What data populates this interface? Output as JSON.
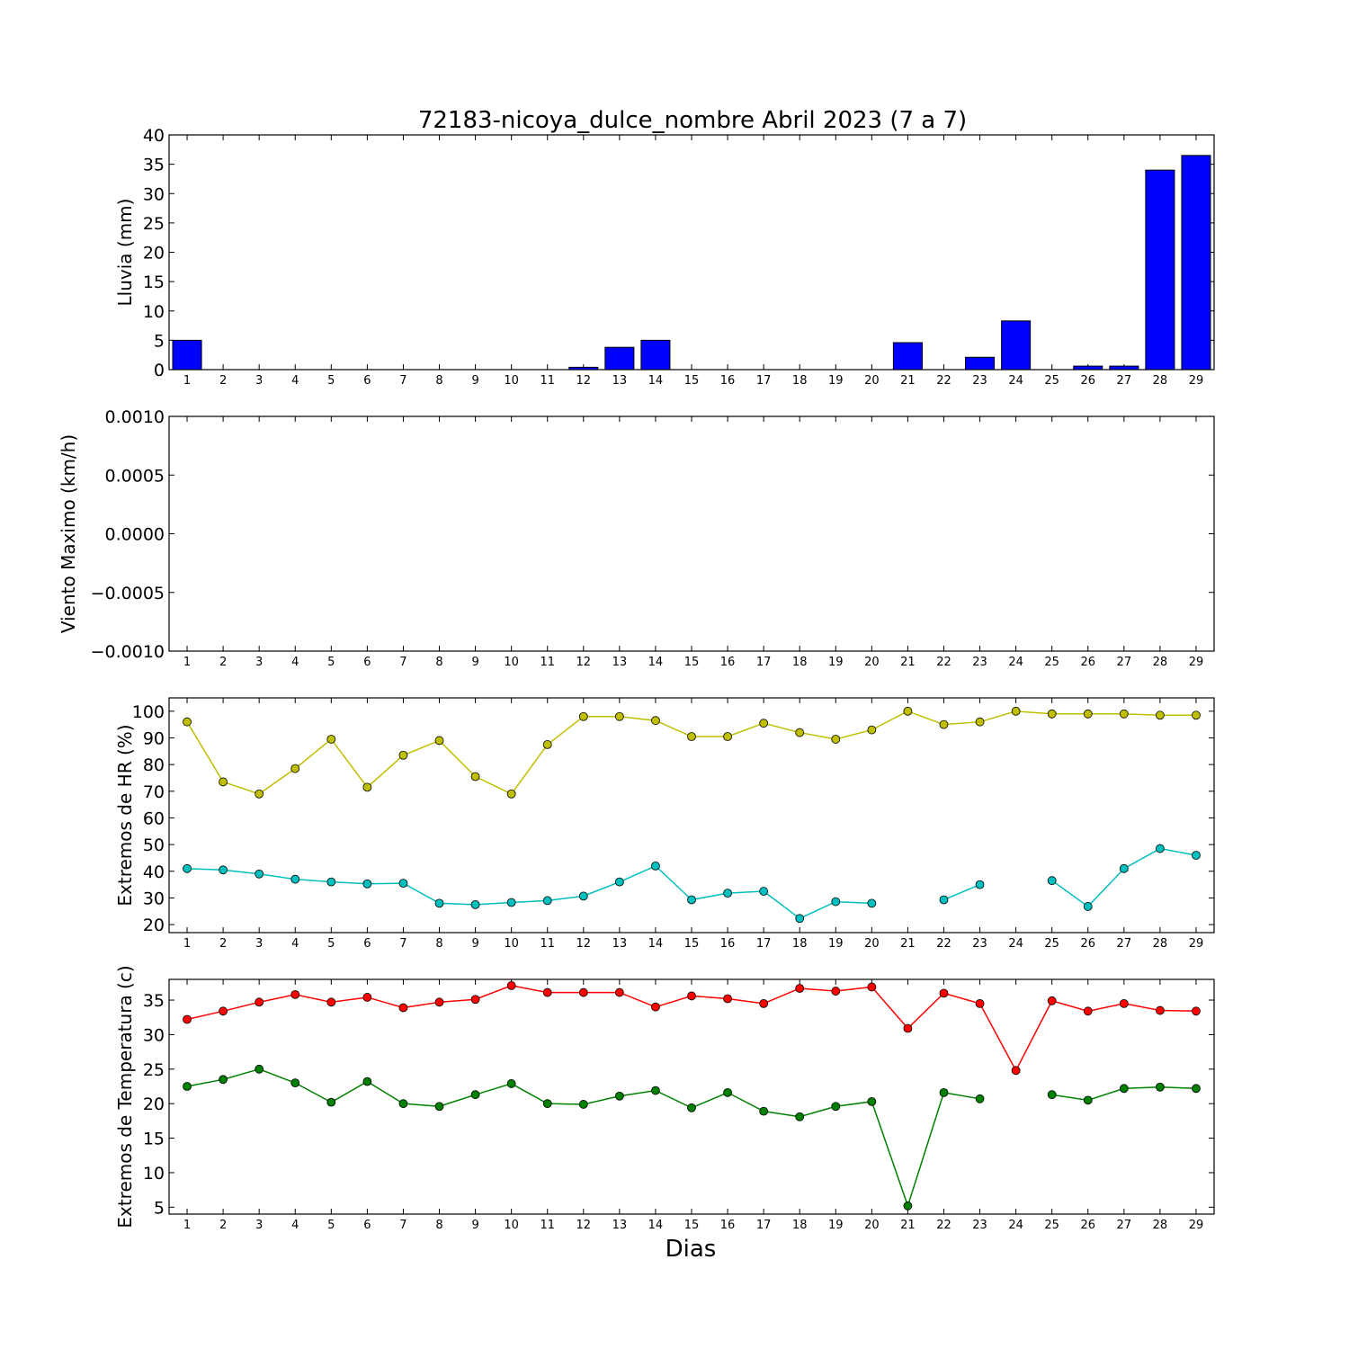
{
  "title": "72183-nicoya_dulce_nombre Abril 2023  (7 a 7)",
  "xlabel": "Dias",
  "colors": {
    "rain": "#0000ff",
    "hr_max": "#bfbf00",
    "hr_min": "#00bfbf",
    "temp_max": "#ff0000",
    "temp_min": "#008000"
  },
  "chart_data": [
    {
      "type": "bar",
      "ylabel": "Lluvia (mm)",
      "ylim": [
        0,
        40
      ],
      "yticks": [
        "0",
        "5",
        "10",
        "15",
        "20",
        "25",
        "30",
        "35",
        "40"
      ],
      "categories": [
        "1",
        "2",
        "3",
        "4",
        "5",
        "6",
        "7",
        "8",
        "9",
        "10",
        "11",
        "12",
        "13",
        "14",
        "15",
        "16",
        "17",
        "18",
        "19",
        "20",
        "21",
        "22",
        "23",
        "24",
        "25",
        "26",
        "27",
        "28",
        "29"
      ],
      "values": [
        5.0,
        0,
        0,
        0,
        0,
        0,
        0,
        0,
        0,
        0,
        0,
        0.4,
        3.8,
        5.0,
        0,
        0,
        0,
        0,
        0,
        0,
        4.6,
        0,
        2.1,
        8.3,
        0,
        0.6,
        0.6,
        34.0,
        36.5
      ]
    },
    {
      "type": "line",
      "ylabel": "Viento Maximo (km/h)",
      "ylim": [
        -0.001,
        0.001
      ],
      "yticks": [
        "−0.0010",
        "−0.0005",
        "0.0000",
        "0.0005",
        "0.0010"
      ],
      "x": [
        "1",
        "2",
        "3",
        "4",
        "5",
        "6",
        "7",
        "8",
        "9",
        "10",
        "11",
        "12",
        "13",
        "14",
        "15",
        "16",
        "17",
        "18",
        "19",
        "20",
        "21",
        "22",
        "23",
        "24",
        "25",
        "26",
        "27",
        "28",
        "29"
      ],
      "series": []
    },
    {
      "type": "line",
      "ylabel": "Extremos de HR (%)",
      "ylim": [
        17,
        105
      ],
      "yticks": [
        "20",
        "30",
        "40",
        "50",
        "60",
        "70",
        "80",
        "90",
        "100"
      ],
      "x": [
        "1",
        "2",
        "3",
        "4",
        "5",
        "6",
        "7",
        "8",
        "9",
        "10",
        "11",
        "12",
        "13",
        "14",
        "15",
        "16",
        "17",
        "18",
        "19",
        "20",
        "21",
        "22",
        "23",
        "24",
        "25",
        "26",
        "27",
        "28",
        "29"
      ],
      "series": [
        {
          "values": [
            96,
            73.5,
            69,
            78.5,
            89.5,
            71.5,
            83.5,
            89,
            75.5,
            69,
            87.5,
            98,
            98,
            96.5,
            90.5,
            90.5,
            95.5,
            92,
            89.5,
            93,
            100,
            95,
            96,
            100,
            99,
            99,
            99,
            98.5,
            98.5
          ]
        },
        {
          "values": [
            41,
            40.5,
            39,
            37,
            36,
            35.3,
            35.5,
            28,
            27.5,
            28.3,
            29,
            30.7,
            36,
            42,
            29.3,
            31.8,
            32.5,
            22.3,
            28.6,
            28,
            null,
            29.3,
            35,
            null,
            36.5,
            26.8,
            41,
            48.5,
            46
          ]
        }
      ]
    },
    {
      "type": "line",
      "ylabel": "Extremos de Temperatura (c)",
      "ylim": [
        4,
        38
      ],
      "yticks": [
        "5",
        "10",
        "15",
        "20",
        "25",
        "30",
        "35"
      ],
      "x": [
        "1",
        "2",
        "3",
        "4",
        "5",
        "6",
        "7",
        "8",
        "9",
        "10",
        "11",
        "12",
        "13",
        "14",
        "15",
        "16",
        "17",
        "18",
        "19",
        "20",
        "21",
        "22",
        "23",
        "24",
        "25",
        "26",
        "27",
        "28",
        "29"
      ],
      "series": [
        {
          "values": [
            32.2,
            33.4,
            34.7,
            35.8,
            34.7,
            35.4,
            33.9,
            34.7,
            35.1,
            37.1,
            36.1,
            36.1,
            36.1,
            34.0,
            35.6,
            35.2,
            34.5,
            36.7,
            36.3,
            36.9,
            30.9,
            36.0,
            34.5,
            24.8,
            34.9,
            33.4,
            34.5,
            33.5,
            33.4
          ]
        },
        {
          "values": [
            22.5,
            23.5,
            25.0,
            23.0,
            20.2,
            23.2,
            20.0,
            19.6,
            21.3,
            22.9,
            20.0,
            19.9,
            21.1,
            21.9,
            19.4,
            21.6,
            18.9,
            18.1,
            19.6,
            20.3,
            5.2,
            21.6,
            20.7,
            null,
            21.3,
            20.5,
            22.2,
            22.4,
            22.2
          ]
        }
      ]
    }
  ]
}
